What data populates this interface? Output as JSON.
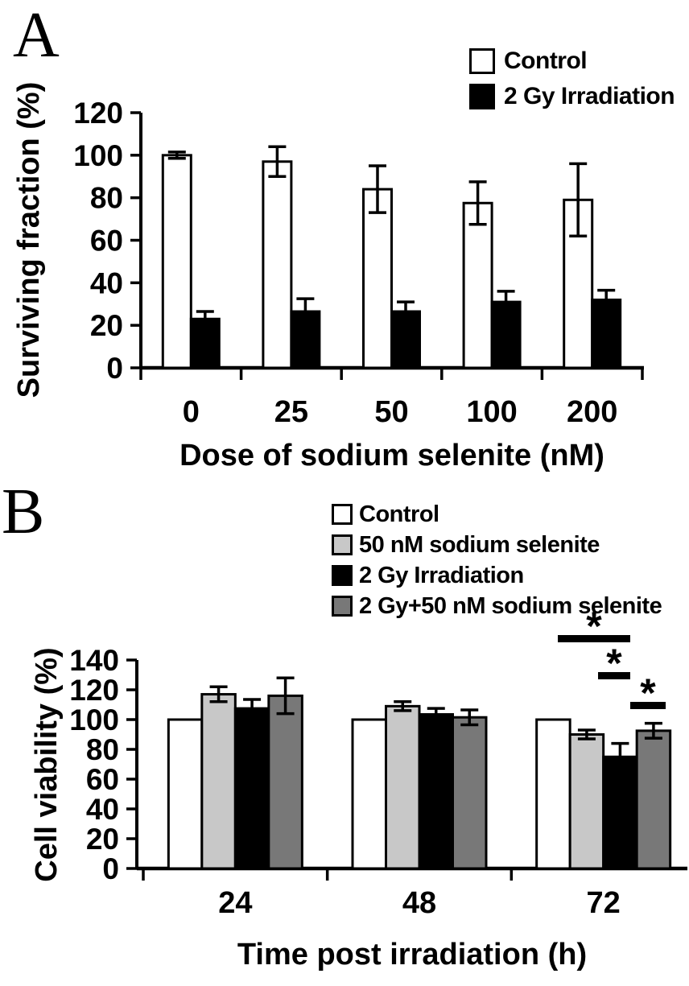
{
  "panels": [
    {
      "label": "A"
    },
    {
      "label": "B"
    }
  ],
  "chart_data": [
    {
      "type": "bar",
      "panel": "A",
      "title": "",
      "xlabel": "Dose of sodium selenite (nM)",
      "ylabel": "Surviving fraction (%)",
      "ylim": [
        0,
        120
      ],
      "yticks": [
        0,
        20,
        40,
        60,
        80,
        100,
        120
      ],
      "categories": [
        "0",
        "25",
        "50",
        "100",
        "200"
      ],
      "series": [
        {
          "name": "Control",
          "color": "#ffffff",
          "values": [
            100,
            97,
            84,
            77.5,
            79
          ],
          "errors": [
            1.5,
            7,
            11,
            10,
            17
          ]
        },
        {
          "name": "2 Gy Irradiation",
          "color": "#000000",
          "values": [
            23,
            26.5,
            26.5,
            31,
            32
          ],
          "errors": [
            3.5,
            6,
            4.5,
            5,
            4.5
          ]
        }
      ],
      "legend_position": "top-right",
      "grid": false
    },
    {
      "type": "bar",
      "panel": "B",
      "title": "",
      "xlabel": "Time post irradiation (h)",
      "ylabel": "Cell viability (%)",
      "ylim": [
        0,
        140
      ],
      "yticks": [
        0,
        20,
        40,
        60,
        80,
        100,
        120,
        140
      ],
      "categories": [
        "24",
        "48",
        "72"
      ],
      "series": [
        {
          "name": "Control",
          "color": "#ffffff",
          "values": [
            100,
            100,
            100
          ],
          "errors": [
            0,
            0,
            0
          ]
        },
        {
          "name": "50 nM sodium selenite",
          "color": "#c8c8c8",
          "values": [
            117,
            109,
            90
          ],
          "errors": [
            5,
            3,
            3
          ]
        },
        {
          "name": "2 Gy Irradiation",
          "color": "#000000",
          "values": [
            107.5,
            103.5,
            75
          ],
          "errors": [
            6,
            4,
            9
          ]
        },
        {
          "name": "2 Gy+50 nM sodium selenite",
          "color": "#787878",
          "values": [
            116,
            101.5,
            92.5
          ],
          "errors": [
            12,
            5,
            5
          ]
        }
      ],
      "significance": [
        {
          "symbol": "*",
          "at_category": "72",
          "between": [
            "Control",
            "2 Gy Irradiation"
          ]
        },
        {
          "symbol": "*",
          "at_category": "72",
          "between": [
            "50 nM sodium selenite",
            "2 Gy Irradiation"
          ]
        },
        {
          "symbol": "*",
          "at_category": "72",
          "between": [
            "2 Gy Irradiation",
            "2 Gy+50 nM sodium selenite"
          ]
        }
      ],
      "legend_position": "top",
      "grid": false
    }
  ]
}
